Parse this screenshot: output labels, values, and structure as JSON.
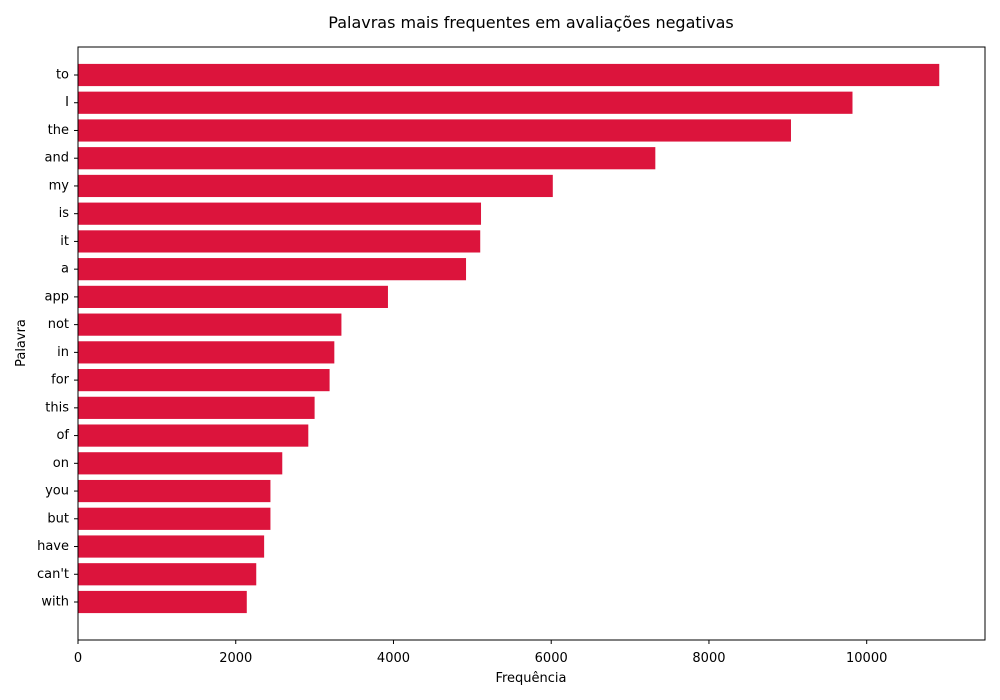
{
  "chart_data": {
    "type": "bar",
    "orientation": "horizontal",
    "title": "Palavras mais frequentes em avaliações negativas",
    "xlabel": "Frequência",
    "ylabel": "Palavra",
    "categories": [
      "to",
      "I",
      "the",
      "and",
      "my",
      "is",
      "it",
      "a",
      "app",
      "not",
      "in",
      "for",
      "this",
      "of",
      "on",
      "you",
      "but",
      "have",
      "can't",
      "with"
    ],
    "values": [
      10920,
      9820,
      9040,
      7320,
      6020,
      5110,
      5100,
      4920,
      3930,
      3340,
      3250,
      3190,
      3000,
      2920,
      2590,
      2440,
      2440,
      2360,
      2260,
      2140
    ],
    "xlim": [
      0,
      11500
    ],
    "xticks": [
      0,
      2000,
      4000,
      6000,
      8000,
      10000
    ],
    "bar_color": "#dc143c",
    "grid": false,
    "legend": "none"
  }
}
